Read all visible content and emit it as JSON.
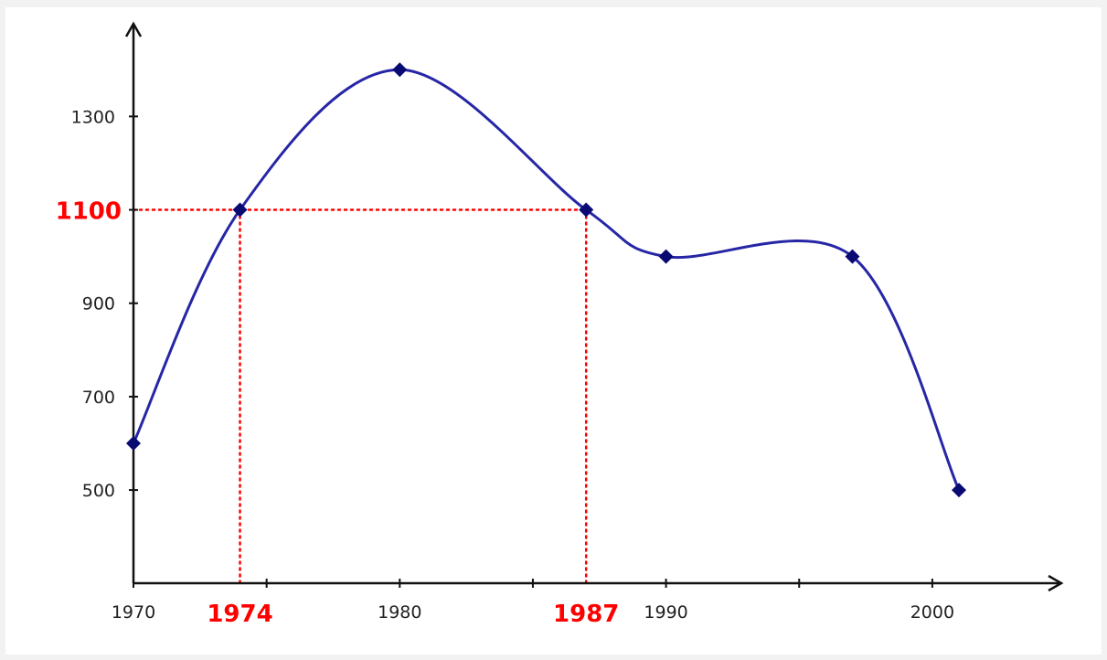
{
  "chart_data": {
    "type": "line",
    "title": "",
    "xlabel": "",
    "ylabel": "",
    "xlim": [
      1970,
      2005
    ],
    "ylim": [
      350,
      1450
    ],
    "x_ticks": [
      1970,
      1975,
      1980,
      1985,
      1990,
      1995,
      2000
    ],
    "x_tick_labels": [
      "1970",
      "",
      "1980",
      "",
      "1990",
      "",
      "2000"
    ],
    "y_ticks": [
      500,
      700,
      900,
      1100,
      1300
    ],
    "y_tick_labels": [
      "500",
      "700",
      "900",
      "",
      "1300"
    ],
    "grid": false,
    "smooth": true,
    "series": [
      {
        "x": [
          1970,
          1974,
          1980,
          1987,
          1990,
          1997,
          2001
        ],
        "y": [
          600,
          1100,
          1400,
          1100,
          1000,
          1000,
          500
        ]
      }
    ],
    "highlight": {
      "y_value": 1100,
      "y_label": "1100",
      "x_values": [
        1974,
        1987
      ],
      "x_labels": [
        "1974",
        "1987"
      ],
      "color": "#ff0000"
    },
    "line_color": "#2626a6",
    "marker_color": "#0a0a73",
    "axis_color": "#111111"
  }
}
